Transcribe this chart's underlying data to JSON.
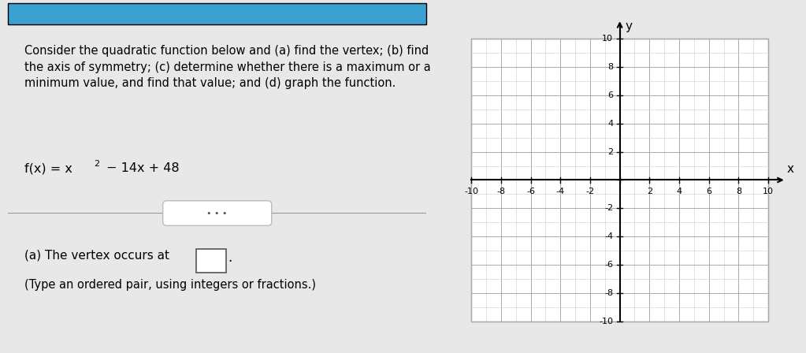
{
  "bg_color": "#e8e8e8",
  "left_bg": "#ffffff",
  "right_bg": "#e0e0e0",
  "title_text": "Consider the quadratic function below and (a) find the vertex; (b) find\nthe axis of symmetry; (c) determine whether there is a maximum or a\nminimum value, and find that value; and (d) graph the function.",
  "function_text": "f(x) = x² − 14x + 48",
  "part_a_text": "(a) The vertex occurs at",
  "part_a_sub": "(Type an ordered pair, using integers or fractions.)",
  "x_label": "x",
  "y_label": "y",
  "grid_color": "#aaaaaa",
  "grid_minor_color": "#cccccc",
  "axis_color": "#000000",
  "text_color": "#000000",
  "top_bar_color": "#3a9fd1"
}
